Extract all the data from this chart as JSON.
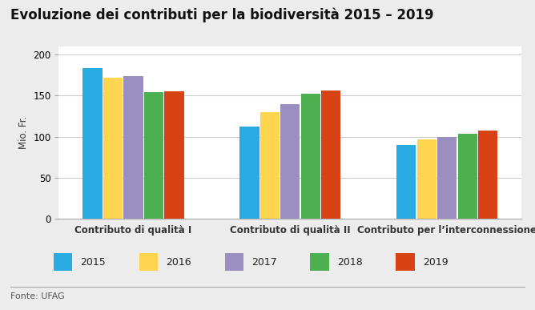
{
  "title": "Evoluzione dei contributi per la biodiversità 2015 – 2019",
  "ylabel": "Mio. Fr.",
  "fonte": "Fonte: UFAG",
  "categories": [
    "Contributo di qualità I",
    "Contributo di qualità II",
    "Contributo per l’interconnessione"
  ],
  "years": [
    "2015",
    "2016",
    "2017",
    "2018",
    "2019"
  ],
  "values": [
    [
      184,
      172,
      174,
      154,
      155
    ],
    [
      112,
      130,
      140,
      152,
      156
    ],
    [
      90,
      97,
      100,
      103,
      107
    ]
  ],
  "colors": [
    "#29abe2",
    "#ffd54f",
    "#9b8fc2",
    "#4caf50",
    "#d84315"
  ],
  "ylim": [
    0,
    210
  ],
  "yticks": [
    0,
    50,
    100,
    150,
    200
  ],
  "background_color": "#ececec",
  "plot_bg_color": "#ffffff",
  "title_fontsize": 12,
  "axis_fontsize": 8.5,
  "legend_fontsize": 9,
  "source_fontsize": 8
}
